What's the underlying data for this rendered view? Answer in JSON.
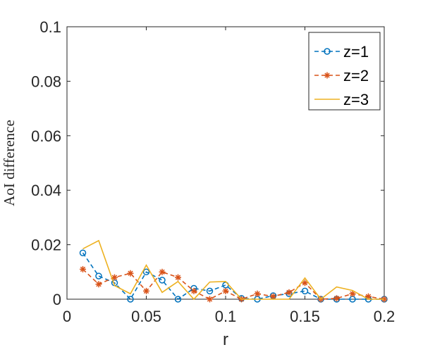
{
  "chart_data": {
    "type": "line",
    "xlabel": "r",
    "ylabel": "AoI difference",
    "xlim": [
      0,
      0.2
    ],
    "ylim": [
      0,
      0.1
    ],
    "xticks": [
      0,
      0.05,
      0.1,
      0.15,
      0.2
    ],
    "xtick_labels": [
      "0",
      "0.05",
      "0.1",
      "0.15",
      "0.2"
    ],
    "yticks": [
      0,
      0.02,
      0.04,
      0.06,
      0.08,
      0.1
    ],
    "ytick_labels": [
      "0",
      "0.02",
      "0.04",
      "0.06",
      "0.08",
      "0.1"
    ],
    "grid": false,
    "legend_position": "top-right",
    "x": [
      0.01,
      0.02,
      0.03,
      0.04,
      0.05,
      0.06,
      0.07,
      0.08,
      0.09,
      0.1,
      0.11,
      0.12,
      0.13,
      0.14,
      0.15,
      0.16,
      0.17,
      0.18,
      0.19,
      0.2
    ],
    "series": [
      {
        "name": "z=1",
        "color": "#0072BD",
        "line_style": "dashed",
        "marker": "circle",
        "values": [
          0.017,
          0.0085,
          0.006,
          0.0,
          0.01,
          0.007,
          0.0,
          0.004,
          0.003,
          0.0052,
          0.0003,
          0.0,
          0.0013,
          0.002,
          0.003,
          0.0,
          0.0,
          0.0,
          0.0,
          0.0
        ]
      },
      {
        "name": "z=2",
        "color": "#D95319",
        "line_style": "dashed",
        "marker": "asterisk",
        "values": [
          0.011,
          0.0055,
          0.008,
          0.0095,
          0.003,
          0.01,
          0.008,
          0.003,
          0.0,
          0.003,
          0.0,
          0.002,
          0.001,
          0.0025,
          0.006,
          0.0,
          0.0003,
          0.002,
          0.001,
          0.0
        ]
      },
      {
        "name": "z=3",
        "color": "#EDB120",
        "line_style": "solid",
        "marker": "none",
        "values": [
          0.0185,
          0.0215,
          0.005,
          0.002,
          0.0125,
          0.0025,
          0.0065,
          0.0,
          0.0063,
          0.0065,
          0.0,
          0.0,
          0.0,
          0.0,
          0.0078,
          0.0,
          0.0045,
          0.0032,
          0.0,
          0.0
        ]
      }
    ]
  }
}
